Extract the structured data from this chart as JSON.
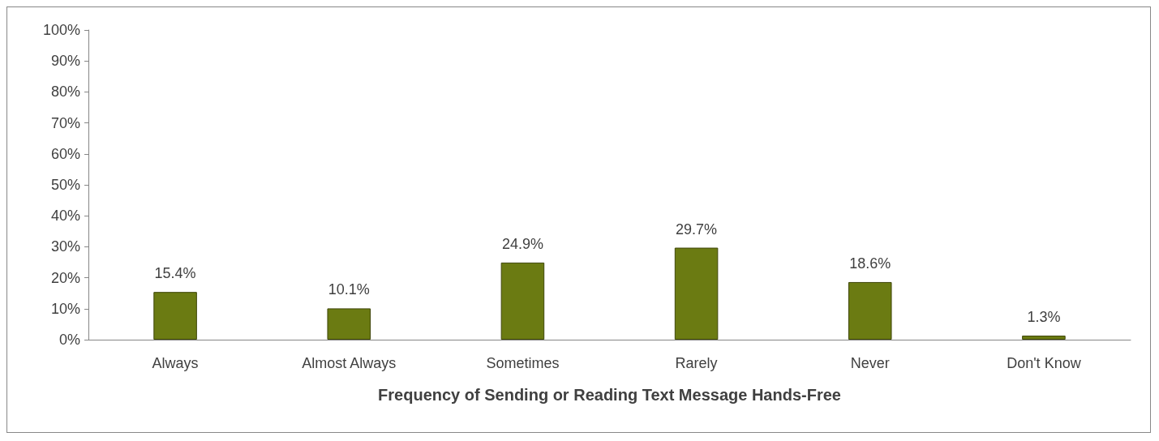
{
  "chart_data": {
    "type": "bar",
    "xlabel": "Frequency of Sending or Reading Text Message Hands-Free",
    "categories": [
      "Always",
      "Almost Always",
      "Sometimes",
      "Rarely",
      "Never",
      "Don't Know"
    ],
    "values": [
      15.4,
      10.1,
      24.9,
      29.7,
      18.6,
      1.3
    ],
    "value_labels": [
      "15.4%",
      "10.1%",
      "24.9%",
      "29.7%",
      "18.6%",
      "1.3%"
    ],
    "color": "#6b7b12",
    "ylim": [
      0,
      100
    ],
    "yticks": [
      {
        "value": 0,
        "label": "0%"
      },
      {
        "value": 10,
        "label": "10%"
      },
      {
        "value": 20,
        "label": "20%"
      },
      {
        "value": 30,
        "label": "30%"
      },
      {
        "value": 40,
        "label": "40%"
      },
      {
        "value": 50,
        "label": "50%"
      },
      {
        "value": 60,
        "label": "60%"
      },
      {
        "value": 70,
        "label": "70%"
      },
      {
        "value": 80,
        "label": "80%"
      },
      {
        "value": 90,
        "label": "90%"
      },
      {
        "value": 100,
        "label": "100%"
      }
    ],
    "grid": false
  }
}
